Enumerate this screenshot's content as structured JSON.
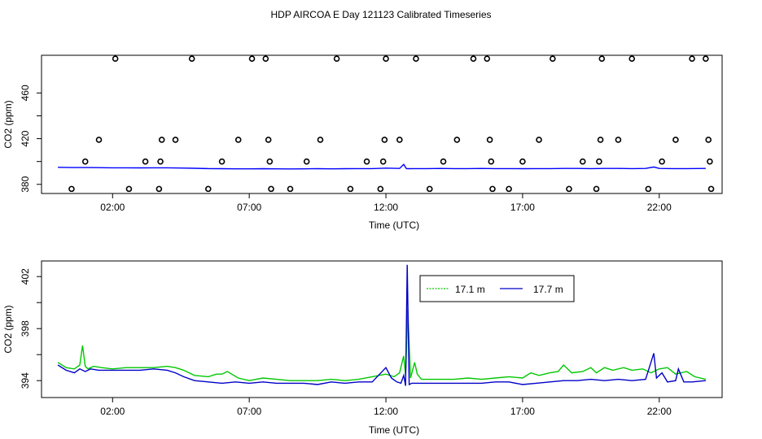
{
  "page": {
    "title": "HDP AIRCOA E  Day 121123  Calibrated Timeseries"
  },
  "chart_data": [
    {
      "type": "scatter",
      "xlabel": "Time (UTC)",
      "ylabel": "CO2 (ppm)",
      "x_ticks": [
        2,
        7,
        12,
        17,
        22
      ],
      "x_tick_labels": [
        "02:00",
        "07:00",
        "12:00",
        "17:00",
        "22:00"
      ],
      "y_ticks": [
        380,
        420,
        460
      ],
      "y_tick_labels": [
        "380",
        "420",
        "460"
      ],
      "xlim": [
        -0.6,
        24.3
      ],
      "ylim": [
        372,
        493
      ],
      "grid": false,
      "series": [
        {
          "color": "#0000ff",
          "kind": "line",
          "x": [
            0.0,
            0.5,
            1.0,
            1.5,
            2.0,
            2.5,
            3.0,
            3.5,
            4.0,
            4.5,
            5.0,
            5.5,
            6.0,
            6.5,
            7.0,
            7.5,
            8.0,
            8.5,
            9.0,
            9.5,
            10.0,
            10.5,
            11.0,
            11.5,
            12.0,
            12.5,
            12.65,
            12.75,
            12.85,
            13.0,
            13.5,
            14.0,
            14.5,
            15.0,
            15.5,
            16.0,
            16.5,
            17.0,
            17.5,
            18.0,
            18.5,
            19.0,
            19.5,
            20.0,
            20.5,
            21.0,
            21.5,
            21.8,
            22.0,
            22.5,
            23.0,
            23.7
          ],
          "y": [
            394.9,
            394.7,
            394.7,
            394.6,
            394.5,
            394.5,
            394.4,
            394.5,
            394.5,
            394.3,
            394.1,
            393.8,
            393.7,
            393.6,
            393.6,
            393.7,
            393.6,
            393.5,
            393.6,
            393.7,
            393.6,
            393.7,
            393.8,
            393.8,
            394.2,
            393.9,
            397.5,
            393.8,
            393.7,
            393.8,
            393.8,
            393.9,
            393.8,
            393.8,
            393.9,
            393.8,
            393.8,
            393.7,
            393.8,
            393.8,
            393.9,
            393.9,
            393.8,
            393.9,
            393.9,
            393.8,
            393.9,
            395.2,
            393.9,
            393.8,
            393.8,
            393.9
          ]
        },
        {
          "color": "#000000",
          "kind": "points",
          "x": [
            0.5,
            1.0,
            1.5,
            2.1,
            2.6,
            3.2,
            3.7,
            3.75,
            3.8,
            4.3,
            4.9,
            5.5,
            6.0,
            6.6,
            7.1,
            7.6,
            7.7,
            7.75,
            7.8,
            8.5,
            9.1,
            9.6,
            10.2,
            10.7,
            11.3,
            11.8,
            11.9,
            11.95,
            12.0,
            12.5,
            13.1,
            13.6,
            14.1,
            14.6,
            15.2,
            15.7,
            15.8,
            15.85,
            15.9,
            16.5,
            17.0,
            17.6,
            18.1,
            18.7,
            19.2,
            19.7,
            19.8,
            19.85,
            19.9,
            20.5,
            21.0,
            21.6,
            22.1,
            22.6,
            23.2,
            23.7,
            23.8,
            23.85,
            23.9
          ],
          "y": [
            376,
            400,
            419,
            490,
            376,
            400,
            376,
            400,
            419,
            419,
            490,
            376,
            400,
            419,
            490,
            490,
            419,
            400,
            376,
            376,
            400,
            419,
            490,
            376,
            400,
            376,
            400,
            419,
            490,
            419,
            490,
            376,
            400,
            419,
            490,
            490,
            419,
            400,
            376,
            376,
            400,
            419,
            490,
            376,
            400,
            376,
            400,
            419,
            490,
            419,
            490,
            376,
            400,
            419,
            490,
            490,
            419,
            400,
            376
          ]
        }
      ]
    },
    {
      "type": "line",
      "xlabel": "Time (UTC)",
      "ylabel": "CO2 (ppm)",
      "x_ticks": [
        2,
        7,
        12,
        17,
        22
      ],
      "x_tick_labels": [
        "02:00",
        "07:00",
        "12:00",
        "17:00",
        "22:00"
      ],
      "y_ticks": [
        394,
        398,
        402
      ],
      "y_tick_labels": [
        "394",
        "398",
        "402"
      ],
      "xlim": [
        -0.6,
        24.3
      ],
      "ylim": [
        392.7,
        403.2
      ],
      "grid": false,
      "legend_position": "top-center",
      "series": [
        {
          "name": "17.1 m",
          "color": "#00c800",
          "x": [
            0.0,
            0.3,
            0.6,
            0.8,
            0.9,
            1.0,
            1.1,
            1.3,
            1.6,
            2.0,
            2.5,
            3.0,
            3.5,
            4.0,
            4.3,
            4.6,
            5.0,
            5.5,
            5.8,
            6.0,
            6.2,
            6.6,
            7.0,
            7.5,
            8.0,
            8.5,
            9.0,
            9.5,
            10.0,
            10.5,
            11.0,
            11.5,
            12.0,
            12.3,
            12.5,
            12.65,
            12.72,
            12.8,
            12.9,
            13.05,
            13.15,
            13.3,
            13.6,
            14.0,
            14.5,
            15.0,
            15.5,
            16.0,
            16.5,
            17.0,
            17.3,
            17.6,
            18.0,
            18.3,
            18.5,
            18.8,
            19.2,
            19.5,
            19.7,
            20.0,
            20.3,
            20.7,
            21.0,
            21.4,
            21.7,
            22.0,
            22.3,
            22.6,
            23.0,
            23.3,
            23.7
          ],
          "y": [
            395.4,
            395.0,
            394.9,
            395.2,
            396.7,
            395.1,
            394.9,
            395.1,
            395.0,
            394.9,
            395.0,
            395.0,
            395.0,
            395.1,
            395.0,
            394.8,
            394.4,
            394.3,
            394.5,
            394.5,
            394.7,
            394.2,
            394.0,
            394.2,
            394.1,
            394.0,
            394.0,
            394.0,
            394.1,
            394.0,
            394.1,
            394.3,
            394.5,
            394.3,
            394.6,
            395.9,
            394.4,
            399.5,
            394.2,
            395.4,
            394.5,
            394.1,
            394.1,
            394.1,
            394.1,
            394.2,
            394.1,
            394.2,
            394.3,
            394.2,
            394.6,
            394.4,
            394.6,
            394.7,
            395.2,
            394.6,
            394.7,
            395.0,
            394.6,
            395.0,
            394.8,
            395.0,
            394.8,
            394.9,
            394.6,
            394.9,
            395.0,
            394.5,
            394.7,
            394.3,
            394.1
          ]
        },
        {
          "name": "17.7 m",
          "color": "#0000c8",
          "x": [
            0.0,
            0.3,
            0.6,
            0.8,
            1.0,
            1.2,
            1.5,
            2.0,
            2.5,
            3.0,
            3.5,
            4.0,
            4.3,
            4.6,
            5.0,
            5.5,
            6.0,
            6.5,
            7.0,
            7.5,
            8.0,
            8.5,
            9.0,
            9.5,
            10.0,
            10.5,
            11.0,
            11.5,
            12.0,
            12.2,
            12.4,
            12.55,
            12.65,
            12.72,
            12.78,
            12.85,
            12.95,
            13.2,
            13.5,
            14.0,
            14.5,
            15.0,
            15.5,
            16.0,
            16.5,
            17.0,
            17.5,
            18.0,
            18.5,
            19.0,
            19.5,
            20.0,
            20.5,
            21.0,
            21.5,
            21.8,
            21.9,
            22.1,
            22.3,
            22.6,
            22.7,
            22.9,
            23.2,
            23.7
          ],
          "y": [
            395.2,
            394.8,
            394.6,
            394.9,
            394.7,
            394.9,
            394.8,
            394.8,
            394.8,
            394.8,
            394.9,
            394.8,
            394.6,
            394.3,
            394.0,
            393.9,
            393.8,
            393.9,
            393.8,
            393.9,
            393.8,
            393.8,
            393.8,
            393.7,
            393.9,
            393.8,
            393.9,
            393.9,
            395.0,
            394.2,
            393.9,
            393.8,
            394.4,
            393.6,
            402.9,
            393.7,
            393.8,
            393.8,
            393.8,
            393.8,
            393.8,
            393.8,
            393.8,
            393.9,
            393.9,
            393.7,
            393.8,
            393.9,
            394.0,
            394.0,
            394.1,
            394.0,
            394.1,
            394.0,
            394.1,
            396.1,
            394.2,
            394.6,
            393.9,
            394.0,
            394.9,
            393.9,
            393.9,
            394.0
          ]
        }
      ]
    }
  ]
}
